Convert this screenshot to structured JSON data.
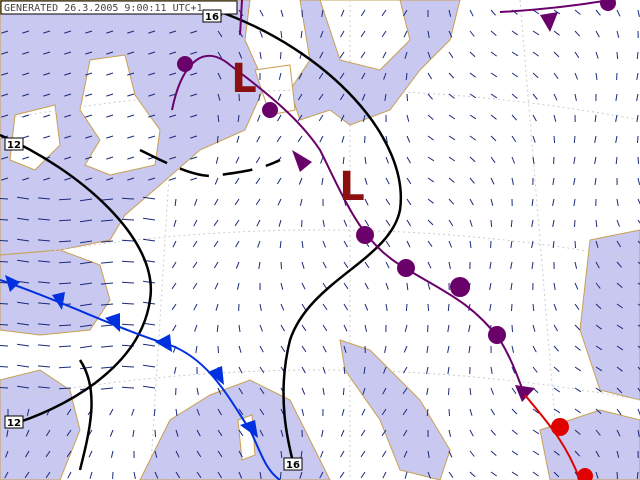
{
  "header": {
    "generated": "GENERATED 26.3.2005 9:00:11 UTC+1"
  },
  "isobars": [
    {
      "label": "16"
    },
    {
      "label": "12"
    },
    {
      "label": "12"
    },
    {
      "label": "16"
    }
  ],
  "pressure_centers": [
    {
      "label": "L"
    },
    {
      "label": "L"
    }
  ]
}
